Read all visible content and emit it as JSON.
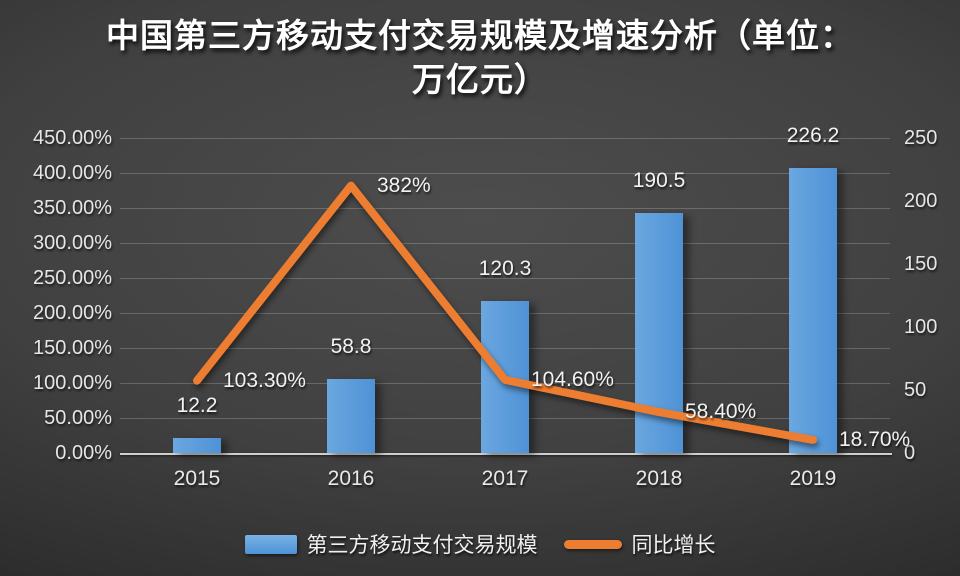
{
  "title": {
    "text": "中国第三方移动支付交易规模及增速分析（单位：万亿元）",
    "lines": [
      "中国第三方移动支付交易规模及增速分析（单位：",
      "万亿元）"
    ]
  },
  "chart_data": {
    "type": "bar+line combo",
    "categories": [
      "2015",
      "2016",
      "2017",
      "2018",
      "2019"
    ],
    "series": [
      {
        "name": "第三方移动支付交易规模",
        "type": "bar",
        "axis": "right",
        "values": [
          12.2,
          58.8,
          120.3,
          190.5,
          226.2
        ],
        "labels": [
          "12.2",
          "58.8",
          "120.3",
          "190.5",
          "226.2"
        ]
      },
      {
        "name": "同比增长",
        "type": "line",
        "axis": "left",
        "values": [
          103.3,
          382,
          104.6,
          58.4,
          18.7
        ],
        "labels": [
          "103.30%",
          "382%",
          "104.60%",
          "58.40%",
          "18.70%"
        ]
      }
    ],
    "left_axis": {
      "min": 0,
      "max": 450,
      "step": 50,
      "tick_labels": [
        "0.00%",
        "50.00%",
        "100.00%",
        "150.00%",
        "200.00%",
        "250.00%",
        "300.00%",
        "350.00%",
        "400.00%",
        "450.00%"
      ]
    },
    "right_axis": {
      "min": 0,
      "max": 250,
      "step": 50,
      "tick_labels": [
        "0",
        "50",
        "100",
        "150",
        "200",
        "250"
      ]
    },
    "grid": true,
    "legend_position": "bottom"
  },
  "legend": {
    "items": [
      {
        "label": "第三方移动支付交易规模",
        "swatch": "bar"
      },
      {
        "label": "同比增长",
        "swatch": "line"
      }
    ]
  },
  "colors": {
    "bar": "#5B9BD5",
    "bar_light": "#6BA7E0",
    "bar_dark": "#4E92D6",
    "line": "#ED7D31",
    "background": "#3F3F3F",
    "text": "#E8E8E8"
  }
}
